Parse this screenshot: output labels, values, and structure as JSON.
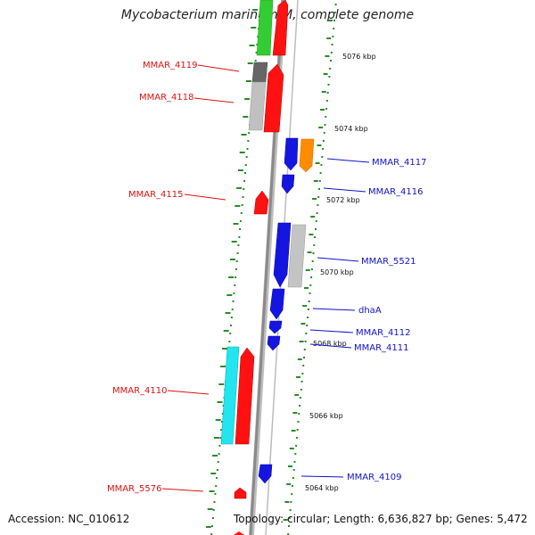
{
  "title": "Mycobacterium marinum M, complete genome",
  "footer": {
    "accession": "Accession: NC_010612",
    "summary": "Topology: circular; Length: 6,636,827 bp; Genes: 5,472"
  },
  "colors": {
    "forward_label": "#dd1111",
    "reverse_label": "#1111cc",
    "tick": "#2a8a2a",
    "backbone": "#8a8a8a"
  },
  "scale_labels": [
    {
      "text": "5076 kbp"
    },
    {
      "text": "5074 kbp"
    },
    {
      "text": "5072 kbp"
    },
    {
      "text": "5070 kbp"
    },
    {
      "text": "5068 kbp"
    },
    {
      "text": "5066 kbp"
    },
    {
      "text": "5064 kbp"
    }
  ],
  "gene_labels": [
    {
      "text": "MMAR_4119",
      "strand": "forward"
    },
    {
      "text": "MMAR_4118",
      "strand": "forward"
    },
    {
      "text": "MMAR_4117",
      "strand": "reverse"
    },
    {
      "text": "MMAR_4116",
      "strand": "reverse"
    },
    {
      "text": "MMAR_4115",
      "strand": "forward"
    },
    {
      "text": "MMAR_5521",
      "strand": "reverse"
    },
    {
      "text": "dhaA",
      "strand": "reverse"
    },
    {
      "text": "MMAR_4112",
      "strand": "reverse"
    },
    {
      "text": "MMAR_4111",
      "strand": "reverse"
    },
    {
      "text": "MMAR_4110",
      "strand": "forward"
    },
    {
      "text": "MMAR_4109",
      "strand": "reverse"
    },
    {
      "text": "MMAR_5576",
      "strand": "forward"
    }
  ]
}
